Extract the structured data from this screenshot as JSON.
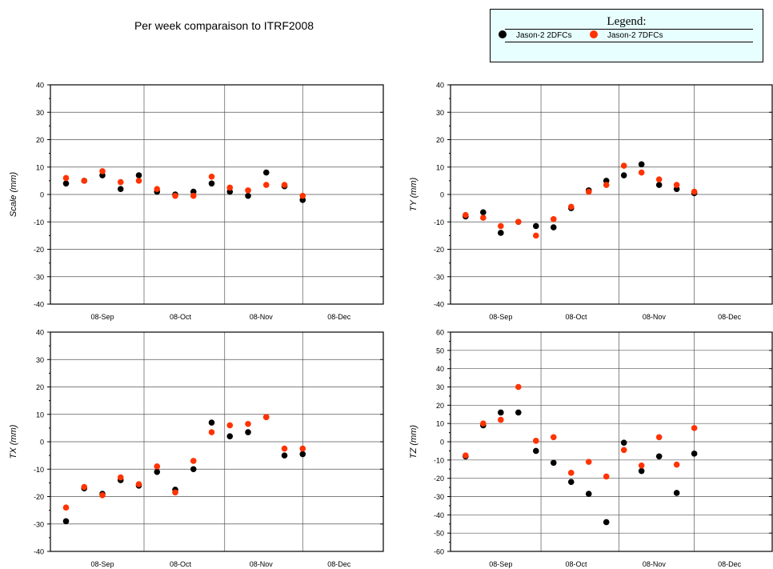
{
  "page": {
    "title": "Per week comparaison to ITRF2008"
  },
  "legend": {
    "title": "Legend:",
    "items": [
      {
        "label": "Jason-2 2DFCs",
        "color": "#000000"
      },
      {
        "label": "Jason-2 7DFCs",
        "color": "#ff3300"
      }
    ]
  },
  "chart_data": [
    {
      "type": "scatter",
      "ylabel": "Scale (mm)",
      "ylim": [
        -40,
        40
      ],
      "yticks": [
        -40,
        -30,
        -20,
        -10,
        0,
        10,
        20,
        30,
        40
      ],
      "xlim": [
        "2008-08-26",
        "2009-01-01"
      ],
      "xticks": [
        {
          "date": "2008-09-15",
          "label": "08-Sep"
        },
        {
          "date": "2008-10-15",
          "label": "08-Oct"
        },
        {
          "date": "2008-11-15",
          "label": "08-Nov"
        },
        {
          "date": "2008-12-15",
          "label": "08-Dec"
        }
      ],
      "grid": true,
      "x": [
        "2008-09-01",
        "2008-09-08",
        "2008-09-15",
        "2008-09-22",
        "2008-09-29",
        "2008-10-06",
        "2008-10-13",
        "2008-10-20",
        "2008-10-27",
        "2008-11-03",
        "2008-11-10",
        "2008-11-17",
        "2008-11-24",
        "2008-12-01"
      ],
      "series": [
        {
          "name": "Jason-2 2DFCs",
          "color": "#000000",
          "values": [
            4,
            5,
            7,
            2,
            7,
            1,
            0,
            1,
            4,
            1,
            -0.5,
            8,
            3,
            -2
          ]
        },
        {
          "name": "Jason-2 7DFCs",
          "color": "#ff3300",
          "values": [
            6,
            5,
            8.5,
            4.5,
            5,
            2,
            -0.5,
            -0.5,
            6.5,
            2.5,
            1.5,
            3.5,
            3.5,
            -0.5
          ]
        }
      ]
    },
    {
      "type": "scatter",
      "ylabel": "TY (mm)",
      "ylim": [
        -40,
        40
      ],
      "yticks": [
        -40,
        -30,
        -20,
        -10,
        0,
        10,
        20,
        30,
        40
      ],
      "xlim": [
        "2008-08-26",
        "2009-01-01"
      ],
      "xticks": [
        {
          "date": "2008-09-15",
          "label": "08-Sep"
        },
        {
          "date": "2008-10-15",
          "label": "08-Oct"
        },
        {
          "date": "2008-11-15",
          "label": "08-Nov"
        },
        {
          "date": "2008-12-15",
          "label": "08-Dec"
        }
      ],
      "grid": true,
      "x": [
        "2008-09-01",
        "2008-09-08",
        "2008-09-15",
        "2008-09-22",
        "2008-09-29",
        "2008-10-06",
        "2008-10-13",
        "2008-10-20",
        "2008-10-27",
        "2008-11-03",
        "2008-11-10",
        "2008-11-17",
        "2008-11-24",
        "2008-12-01"
      ],
      "series": [
        {
          "name": "Jason-2 2DFCs",
          "color": "#000000",
          "values": [
            -8,
            -6.5,
            -14,
            -10,
            -11.5,
            -12,
            -5,
            1.5,
            5,
            7,
            11,
            3.5,
            2,
            0.5
          ]
        },
        {
          "name": "Jason-2 7DFCs",
          "color": "#ff3300",
          "values": [
            -7.5,
            -8.5,
            -11.5,
            -10,
            -15,
            -9,
            -4.5,
            1,
            3.5,
            10.5,
            8,
            5.5,
            3.5,
            1
          ]
        }
      ]
    },
    {
      "type": "scatter",
      "ylabel": "TX (mm)",
      "ylim": [
        -40,
        40
      ],
      "yticks": [
        -40,
        -30,
        -20,
        -10,
        0,
        10,
        20,
        30,
        40
      ],
      "xlim": [
        "2008-08-26",
        "2009-01-01"
      ],
      "xticks": [
        {
          "date": "2008-09-15",
          "label": "08-Sep"
        },
        {
          "date": "2008-10-15",
          "label": "08-Oct"
        },
        {
          "date": "2008-11-15",
          "label": "08-Nov"
        },
        {
          "date": "2008-12-15",
          "label": "08-Dec"
        }
      ],
      "grid": true,
      "x": [
        "2008-09-01",
        "2008-09-08",
        "2008-09-15",
        "2008-09-22",
        "2008-09-29",
        "2008-10-06",
        "2008-10-13",
        "2008-10-20",
        "2008-10-27",
        "2008-11-03",
        "2008-11-10",
        "2008-11-17",
        "2008-11-24",
        "2008-12-01"
      ],
      "series": [
        {
          "name": "Jason-2 2DFCs",
          "color": "#000000",
          "values": [
            -29,
            -17,
            -19,
            -14,
            -16,
            -11,
            -17.5,
            -10,
            7,
            2,
            3.5,
            9,
            -5,
            -4.5
          ]
        },
        {
          "name": "Jason-2 7DFCs",
          "color": "#ff3300",
          "values": [
            -24,
            -16.5,
            -19.5,
            -13,
            -15.5,
            -9,
            -18.5,
            -7,
            3.5,
            6,
            6.5,
            9,
            -2.5,
            -2.5
          ]
        }
      ]
    },
    {
      "type": "scatter",
      "ylabel": "TZ (mm)",
      "ylim": [
        -60,
        60
      ],
      "yticks": [
        -60,
        -50,
        -40,
        -30,
        -20,
        -10,
        0,
        10,
        20,
        30,
        40,
        50,
        60
      ],
      "xlim": [
        "2008-08-26",
        "2009-01-01"
      ],
      "xticks": [
        {
          "date": "2008-09-15",
          "label": "08-Sep"
        },
        {
          "date": "2008-10-15",
          "label": "08-Oct"
        },
        {
          "date": "2008-11-15",
          "label": "08-Nov"
        },
        {
          "date": "2008-12-15",
          "label": "08-Dec"
        }
      ],
      "grid": true,
      "x": [
        "2008-09-01",
        "2008-09-08",
        "2008-09-15",
        "2008-09-22",
        "2008-09-29",
        "2008-10-06",
        "2008-10-13",
        "2008-10-20",
        "2008-10-27",
        "2008-11-03",
        "2008-11-10",
        "2008-11-17",
        "2008-11-24",
        "2008-12-01"
      ],
      "series": [
        {
          "name": "Jason-2 2DFCs",
          "color": "#000000",
          "values": [
            -8,
            9,
            16,
            16,
            -5,
            -11.5,
            -22,
            -28.5,
            -44,
            -0.5,
            -16,
            -8,
            -28,
            -6.5
          ]
        },
        {
          "name": "Jason-2 7DFCs",
          "color": "#ff3300",
          "values": [
            -7.5,
            10,
            12,
            30,
            0.5,
            2.5,
            -17,
            -11,
            -19,
            -4.5,
            -13,
            2.5,
            -12.5,
            7.5
          ]
        }
      ]
    }
  ]
}
